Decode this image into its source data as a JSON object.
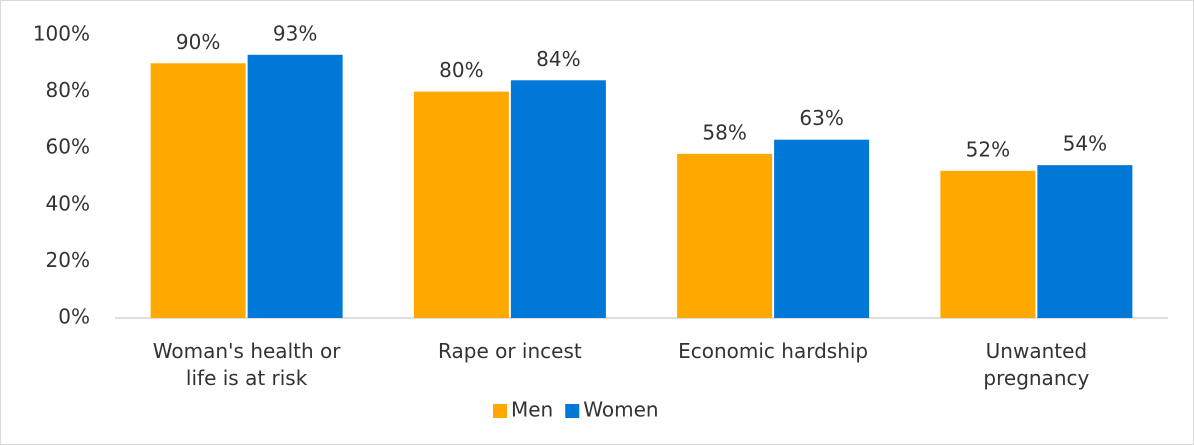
{
  "chart_data": {
    "type": "bar",
    "categories": [
      "Woman's health or\nlife is at risk",
      "Rape or incest",
      "Economic hardship",
      "Unwanted\npregnancy"
    ],
    "series": [
      {
        "name": "Men",
        "color": "#FFA800",
        "values": [
          90,
          80,
          58,
          52
        ],
        "value_labels": [
          "90%",
          "80%",
          "58%",
          "52%"
        ]
      },
      {
        "name": "Women",
        "color": "#0078D7",
        "values": [
          93,
          84,
          63,
          54
        ],
        "value_labels": [
          "93%",
          "84%",
          "63%",
          "54%"
        ]
      }
    ],
    "ylim": [
      0,
      100
    ],
    "yticks": [
      {
        "value": 0,
        "label": "0%"
      },
      {
        "value": 20,
        "label": "20%"
      },
      {
        "value": 40,
        "label": "40%"
      },
      {
        "value": 60,
        "label": "60%"
      },
      {
        "value": 80,
        "label": "80%"
      },
      {
        "value": 100,
        "label": "100%"
      }
    ],
    "grid": false,
    "legend": "bottom"
  }
}
